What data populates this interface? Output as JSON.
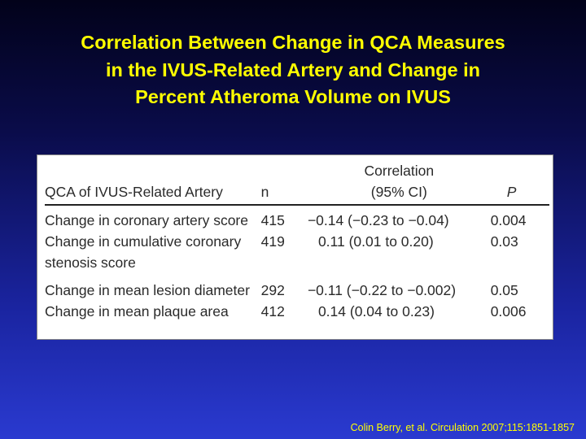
{
  "title": {
    "line1": "Correlation Between Change in QCA Measures",
    "line2": "in the IVUS-Related Artery and Change in",
    "line3": "Percent Atheroma Volume on IVUS"
  },
  "table": {
    "headers": {
      "col1": "QCA of IVUS-Related Artery",
      "col2": "n",
      "col3_line1": "Correlation",
      "col3_line2": "(95% CI)",
      "col4": "P"
    },
    "rows": [
      {
        "measure": "Change in coronary artery score",
        "n": "415",
        "correlation": "−0.14 (−0.23 to −0.04)",
        "p": "0.004"
      },
      {
        "measure": "Change in cumulative coronary stenosis score",
        "n": "419",
        "correlation": "0.11 (0.01 to 0.20)",
        "p": "0.03"
      },
      {
        "measure": "Change in mean lesion diameter",
        "n": "292",
        "correlation": "−0.11 (−0.22 to −0.002)",
        "p": "0.05"
      },
      {
        "measure": "Change in mean plaque area",
        "n": "412",
        "correlation": "0.14 (0.04 to 0.23)",
        "p": "0.006"
      }
    ]
  },
  "citation": "Colin Berry, et al. Circulation 2007;115:1851-1857"
}
